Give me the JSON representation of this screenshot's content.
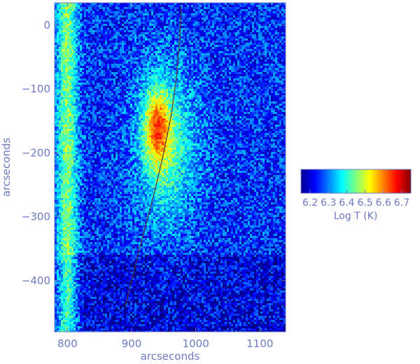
{
  "chart_data": {
    "type": "heatmap",
    "title": "",
    "xlabel": "arcseconds",
    "ylabel": "arcseconds",
    "xlim": [
      780,
      1140
    ],
    "ylim": [
      -480,
      35
    ],
    "x_ticks": [
      {
        "value": 800,
        "label": "800"
      },
      {
        "value": 900,
        "label": "900"
      },
      {
        "value": 1000,
        "label": "1000"
      },
      {
        "value": 1100,
        "label": "1100"
      }
    ],
    "y_ticks": [
      {
        "value": 0,
        "label": "0"
      },
      {
        "value": -100,
        "label": "−100"
      },
      {
        "value": -200,
        "label": "−200"
      },
      {
        "value": -300,
        "label": "−300"
      },
      {
        "value": -400,
        "label": "−400"
      }
    ],
    "grid": false,
    "colormap": "jet",
    "colorbar": {
      "label": "Log T (K)",
      "range": [
        6.15,
        6.75
      ],
      "ticks": [
        {
          "value": 6.2,
          "label": "6.2"
        },
        {
          "value": 6.3,
          "label": "6.3"
        },
        {
          "value": 6.4,
          "label": "6.4"
        },
        {
          "value": 6.5,
          "label": "6.5"
        },
        {
          "value": 6.6,
          "label": "6.6"
        },
        {
          "value": 6.7,
          "label": "6.7"
        }
      ]
    },
    "features": [
      {
        "name": "hot core",
        "center": [
          940,
          -160
        ],
        "logT": 6.68
      },
      {
        "name": "warm region",
        "center": [
          955,
          -190
        ],
        "logT": 6.42
      },
      {
        "name": "left limb edge",
        "x": 800,
        "logT": 6.45
      },
      {
        "name": "background",
        "logT": 6.25
      }
    ],
    "overlay_curve": [
      [
        977,
        30
      ],
      [
        975,
        -20
      ],
      [
        970,
        -80
      ],
      [
        962,
        -140
      ],
      [
        950,
        -200
      ],
      [
        936,
        -260
      ],
      [
        920,
        -320
      ],
      [
        905,
        -380
      ],
      [
        890,
        -440
      ]
    ],
    "colors": {
      "axis_text": "#6f79c4",
      "curve": "#553333"
    }
  }
}
